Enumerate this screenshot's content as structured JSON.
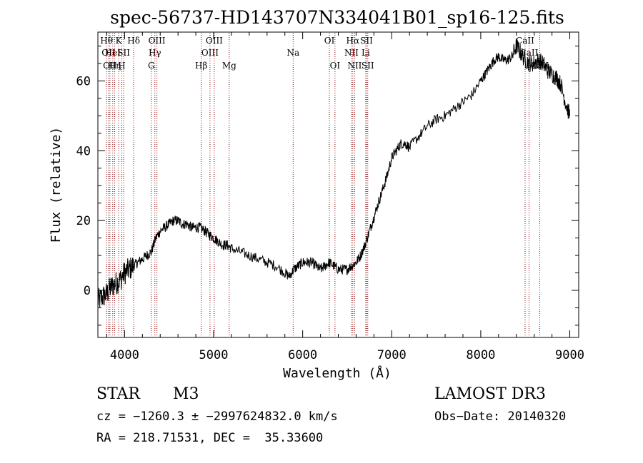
{
  "chart_data": {
    "type": "line",
    "title": "spec-56737-HD143707N334041B01_sp16-125.fits",
    "xlabel": "Wavelength (Å)",
    "ylabel": "Flux (relative)",
    "xlim": [
      3700,
      9100
    ],
    "ylim": [
      -13.5,
      74
    ],
    "x_ticks": [
      4000,
      5000,
      6000,
      7000,
      8000,
      9000
    ],
    "y_ticks": [
      0,
      20,
      40,
      60
    ],
    "grid": false,
    "line_color": "#000000",
    "marker_color": "#8b0000",
    "series": [
      {
        "x": [
          3700,
          3750,
          3800,
          3850,
          3900,
          3950,
          4000,
          4050,
          4100,
          4150,
          4200,
          4250,
          4300,
          4350,
          4400,
          4450,
          4500,
          4550,
          4600,
          4650,
          4700,
          4750,
          4800,
          4850,
          4900,
          4950,
          5000,
          5050,
          5100,
          5150,
          5200,
          5300,
          5400,
          5500,
          5600,
          5700,
          5800,
          5850,
          5900,
          5950,
          6000,
          6050,
          6100,
          6150,
          6200,
          6250,
          6300,
          6350,
          6400,
          6450,
          6500,
          6550,
          6600,
          6650,
          6700,
          6750,
          6800,
          6850,
          6900,
          6950,
          7000,
          7050,
          7100,
          7150,
          7200,
          7300,
          7400,
          7500,
          7600,
          7700,
          7800,
          7900,
          8000,
          8050,
          8100,
          8150,
          8200,
          8250,
          8300,
          8350,
          8400,
          8450,
          8500,
          8550,
          8600,
          8650,
          8700,
          8750,
          8800,
          8850,
          8900,
          8950,
          9000
        ],
        "values": [
          -3,
          -2,
          -1,
          1,
          2,
          3,
          5,
          6,
          7,
          8,
          9,
          10,
          11,
          15,
          17,
          18,
          19,
          20,
          20,
          19,
          19,
          18,
          18,
          18,
          17,
          16,
          15,
          14,
          13,
          13,
          12,
          11,
          10,
          9,
          8,
          7,
          5,
          4,
          6,
          7,
          8,
          8,
          8,
          7,
          6,
          7,
          8,
          7,
          6,
          6,
          6,
          7,
          8,
          10,
          13,
          17,
          21,
          25,
          29,
          33,
          38,
          40,
          42,
          42,
          41,
          44,
          47,
          49,
          50,
          52,
          54,
          56,
          60,
          62,
          64,
          66,
          67,
          66,
          66,
          67,
          70,
          68,
          66,
          65,
          65,
          66,
          65,
          63,
          62,
          61,
          59,
          54,
          50
        ]
      }
    ],
    "line_markers": [
      {
        "wavelength": 3797,
        "row": 0,
        "label": "Hθ"
      },
      {
        "wavelength": 3820,
        "row": 1,
        "label": "OII"
      },
      {
        "wavelength": 3835,
        "row": 2,
        "label": "OII"
      },
      {
        "wavelength": 3867,
        "row": 1,
        "label": "HeI"
      },
      {
        "wavelength": 3889,
        "row": 2,
        "label": "Hη"
      },
      {
        "wavelength": 3934,
        "row": 0,
        "label": "K"
      },
      {
        "wavelength": 3969,
        "row": 2,
        "label": "H"
      },
      {
        "wavelength": 3990,
        "row": 1,
        "label": "SII"
      },
      {
        "wavelength": 4102,
        "row": 0,
        "label": "Hδ"
      },
      {
        "wavelength": 4300,
        "row": 2,
        "label": "G"
      },
      {
        "wavelength": 4340,
        "row": 1,
        "label": "Hγ"
      },
      {
        "wavelength": 4363,
        "row": 0,
        "label": "OIII"
      },
      {
        "wavelength": 4861,
        "row": 2,
        "label": "Hβ"
      },
      {
        "wavelength": 4959,
        "row": 1,
        "label": "OIII"
      },
      {
        "wavelength": 5007,
        "row": 0,
        "label": "OIII"
      },
      {
        "wavelength": 5175,
        "row": 2,
        "label": "Mg"
      },
      {
        "wavelength": 5893,
        "row": 1,
        "label": "Na"
      },
      {
        "wavelength": 6300,
        "row": 0,
        "label": "OI"
      },
      {
        "wavelength": 6363,
        "row": 2,
        "label": "OI"
      },
      {
        "wavelength": 6548,
        "row": 1,
        "label": "NII"
      },
      {
        "wavelength": 6563,
        "row": 0,
        "label": "Hα"
      },
      {
        "wavelength": 6584,
        "row": 2,
        "label": "NII"
      },
      {
        "wavelength": 6708,
        "row": 1,
        "label": "Li"
      },
      {
        "wavelength": 6717,
        "row": 0,
        "label": "SII"
      },
      {
        "wavelength": 6731,
        "row": 2,
        "label": "SII"
      },
      {
        "wavelength": 8498,
        "row": 0,
        "label": "CaII"
      },
      {
        "wavelength": 8542,
        "row": 1,
        "label": "CaII"
      },
      {
        "wavelength": 8662,
        "row": 2,
        "label": "CaII"
      }
    ]
  },
  "info": {
    "class_label": "STAR",
    "subclass": "M3",
    "survey": "LAMOST DR3",
    "cz_line": "cz = −1260.3 ± −2997624832.0 km/s",
    "obs_date": "Obs−Date: 20140320",
    "radec": "RA = 218.71531, DEC =  35.33600"
  }
}
